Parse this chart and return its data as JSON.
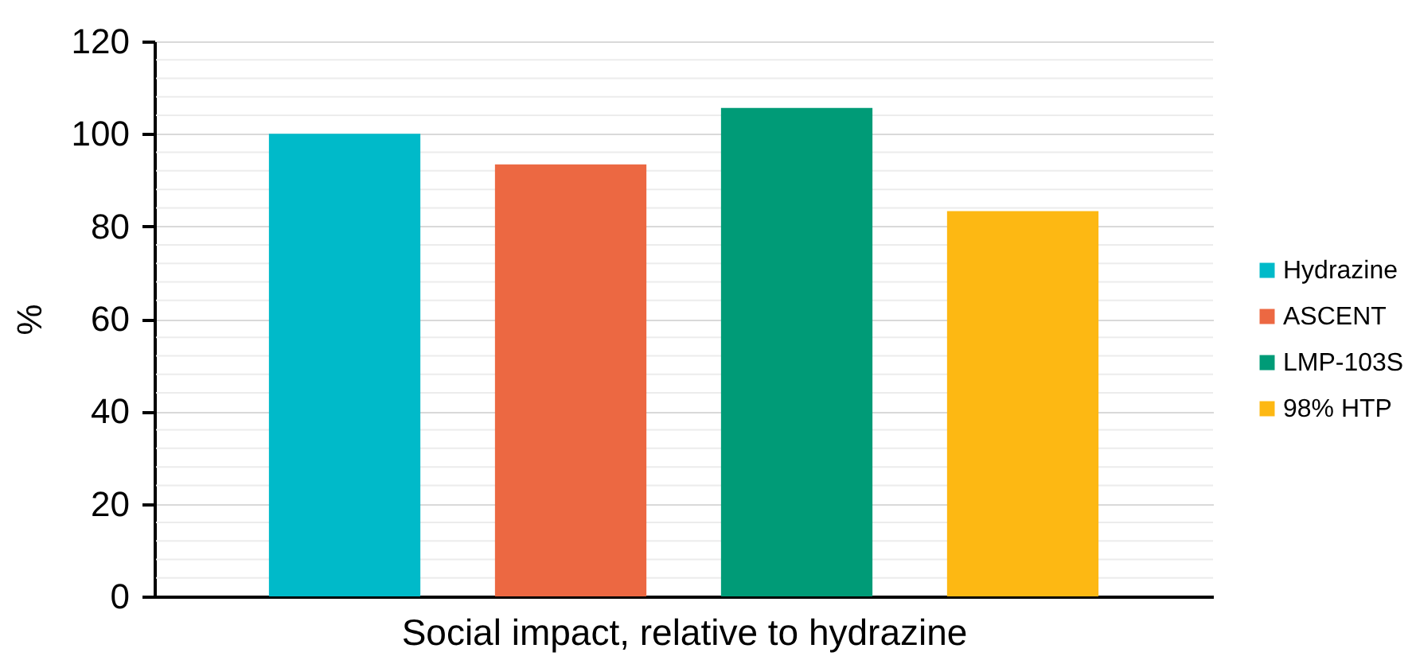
{
  "chart_data": {
    "type": "bar",
    "xlabel": "Social impact, relative to hydrazine",
    "ylabel": "%",
    "categories": [
      null
    ],
    "series": [
      {
        "name": "Hydrazine",
        "color": "#00bac9",
        "values": [
          100
        ]
      },
      {
        "name": "ASCENT",
        "color": "#ec6842",
        "values": [
          93.4
        ]
      },
      {
        "name": "LMP-103S",
        "color": "#009b77",
        "values": [
          105.6
        ]
      },
      {
        "name": "98% HTP",
        "color": "#fdb813",
        "values": [
          83.3
        ]
      }
    ],
    "ylim": [
      0,
      120
    ],
    "yticks": [
      0,
      {
        "value": 4,
        "label": null
      },
      {
        "value": 8,
        "label": null
      },
      {
        "value": 12,
        "label": null
      },
      {
        "value": 16,
        "label": null
      },
      20,
      {
        "value": 24,
        "label": null
      },
      {
        "value": 28,
        "label": null
      },
      {
        "value": 32,
        "label": null
      },
      {
        "value": 36,
        "label": null
      },
      40,
      {
        "value": 44,
        "label": null
      },
      {
        "value": 48,
        "label": null
      },
      {
        "value": 52,
        "label": null
      },
      {
        "value": 56,
        "label": null
      },
      60,
      {
        "value": 64,
        "label": null
      },
      {
        "value": 68,
        "label": null
      },
      {
        "value": 72,
        "label": null
      },
      {
        "value": 76,
        "label": null
      },
      80,
      {
        "value": 84,
        "label": null
      },
      {
        "value": 88,
        "label": null
      },
      {
        "value": 92,
        "label": null
      },
      {
        "value": 96,
        "label": null
      },
      100,
      {
        "value": 104,
        "label": null
      },
      {
        "value": 108,
        "label": null
      },
      {
        "value": 112,
        "label": null
      },
      {
        "value": 116,
        "label": null
      },
      120
    ],
    "grid": "y",
    "legend": "right"
  }
}
